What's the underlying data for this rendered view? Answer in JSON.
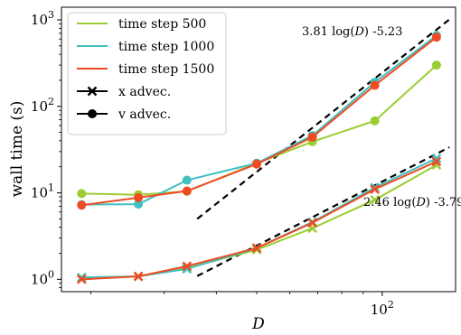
{
  "chart_data": {
    "type": "line",
    "x_scale": "log",
    "y_scale": "log",
    "xlabel": "D",
    "ylabel": "wall time (s)",
    "xlim": [
      17,
      150
    ],
    "ylim": [
      0.72,
      1400
    ],
    "x_ticks": [
      {
        "value": 100,
        "base": "10",
        "exp": "2"
      }
    ],
    "y_ticks": [
      {
        "value": 1,
        "base": "10",
        "exp": "0"
      },
      {
        "value": 10,
        "base": "10",
        "exp": "1"
      },
      {
        "value": 100,
        "base": "10",
        "exp": "2"
      },
      {
        "value": 1000,
        "base": "10",
        "exp": "3"
      }
    ],
    "x": [
      19,
      26,
      34,
      50,
      68,
      96,
      135
    ],
    "series": [
      {
        "name": "time step 500",
        "color": "#9acd32",
        "x_advec": [
          1.05,
          1.08,
          1.35,
          2.2,
          3.9,
          8.3,
          21
        ],
        "v_advec": [
          9.8,
          9.5,
          10.4,
          22,
          39,
          68,
          300
        ]
      },
      {
        "name": "time step 1000",
        "color": "#40c0c0",
        "x_advec": [
          1.05,
          1.08,
          1.32,
          2.3,
          4.6,
          11.5,
          25
        ],
        "v_advec": [
          7.3,
          7.4,
          14,
          22,
          46,
          190,
          660
        ]
      },
      {
        "name": "time step 1500",
        "color": "#f04a24",
        "x_advec": [
          1.0,
          1.08,
          1.42,
          2.3,
          4.5,
          11.0,
          23
        ],
        "v_advec": [
          7.2,
          8.8,
          10.5,
          21.5,
          44,
          175,
          630
        ]
      }
    ],
    "fits": [
      {
        "slope": 3.81,
        "intercept": -5.23,
        "x_range": [
          36,
          145
        ],
        "label_prefix": "3.81 log(",
        "label_var": "D",
        "label_suffix": ") -5.23"
      },
      {
        "slope": 2.46,
        "intercept": -3.79,
        "x_range": [
          36,
          145
        ],
        "label_prefix": "2.46 log(",
        "label_var": "D",
        "label_suffix": ") -3.79"
      }
    ],
    "legend": {
      "placement": "top-left",
      "entries": [
        {
          "label": "time step 500",
          "kind": "line",
          "color": "#9acd32"
        },
        {
          "label": "time step 1000",
          "kind": "line",
          "color": "#40c0c0"
        },
        {
          "label": "time step 1500",
          "kind": "line",
          "color": "#f04a24"
        },
        {
          "label": "x advec.",
          "kind": "marker-x",
          "color": "#000000"
        },
        {
          "label": "v advec.",
          "kind": "marker-o",
          "color": "#000000"
        }
      ]
    },
    "grid": false
  }
}
